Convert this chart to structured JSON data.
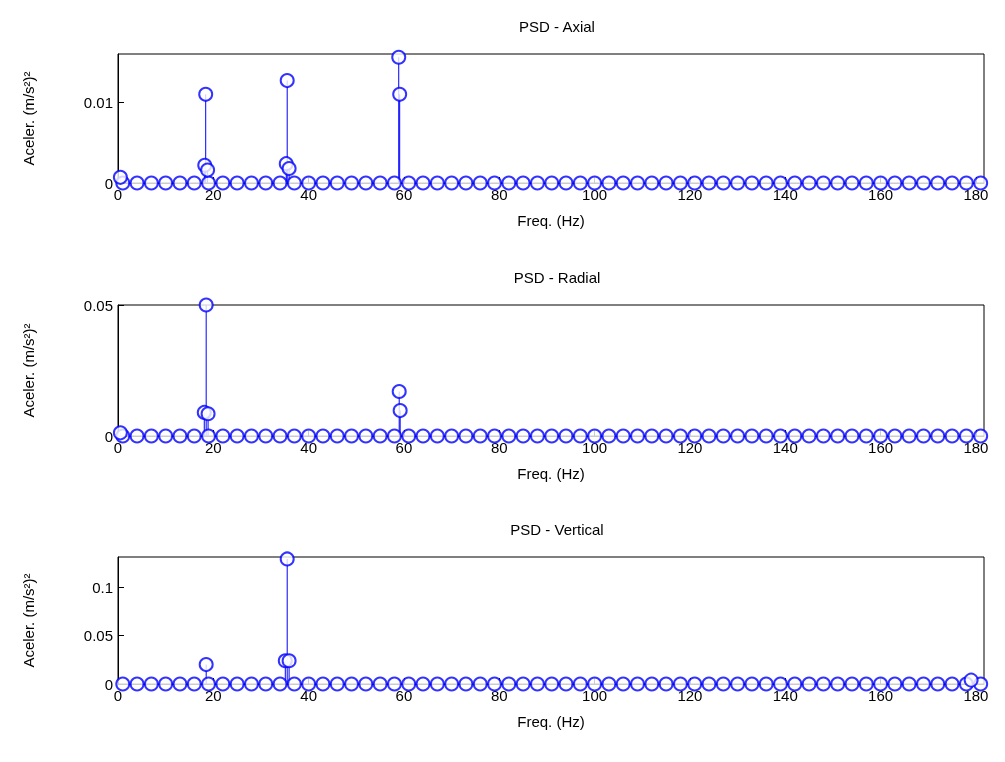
{
  "chart_data": [
    {
      "type": "lollipop",
      "title": "PSD - Axial",
      "xlabel": "Freq. (Hz)",
      "ylabel": "Aceler. (m/s²)²",
      "xlim": [
        0,
        181.7
      ],
      "xticks": [
        0,
        20,
        40,
        60,
        80,
        100,
        120,
        140,
        160,
        180
      ],
      "ylim": [
        0,
        0.016
      ],
      "yticks": [
        0,
        0.01
      ],
      "grid": false,
      "marker": "circle",
      "series": [
        {
          "color": "#0000ff",
          "x": [
            1,
            4,
            7,
            10,
            13,
            16,
            19,
            22,
            25,
            28,
            31,
            34,
            37,
            40,
            43,
            46,
            49,
            52,
            55,
            58,
            61,
            64,
            67,
            70,
            73,
            76,
            79,
            82,
            85,
            88,
            91,
            94,
            97,
            100,
            103,
            106,
            109,
            112,
            115,
            118,
            121,
            124,
            127,
            130,
            133,
            136,
            139,
            142,
            145,
            148,
            151,
            154,
            157,
            160,
            163,
            166,
            169,
            172,
            175,
            178,
            181,
            0.5,
            18.2,
            18.4,
            18.8,
            35.3,
            35.5,
            35.9,
            58.9,
            59.1
          ],
          "values": [
            0,
            0,
            0,
            0,
            0,
            0,
            0,
            0,
            0,
            0,
            0,
            0,
            0,
            0,
            0,
            0,
            0,
            0,
            0,
            0,
            0,
            0,
            0,
            0,
            0,
            0,
            0,
            0,
            0,
            0,
            0,
            0,
            0,
            0,
            0,
            0,
            0,
            0,
            0,
            0,
            0,
            0,
            0,
            0,
            0,
            0,
            0,
            0,
            0,
            0,
            0,
            0,
            0,
            0,
            0,
            0,
            0,
            0,
            0,
            0,
            0,
            0.0007,
            0.0022,
            0.011,
            0.0016,
            0.0024,
            0.0127,
            0.0018,
            0.0156,
            0.011
          ]
        }
      ]
    },
    {
      "type": "lollipop",
      "title": "PSD - Radial",
      "xlabel": "Freq. (Hz)",
      "ylabel": "Aceler. (m/s²)²",
      "xlim": [
        0,
        181.7
      ],
      "xticks": [
        0,
        20,
        40,
        60,
        80,
        100,
        120,
        140,
        160,
        180
      ],
      "ylim": [
        0,
        0.05
      ],
      "yticks": [
        0,
        0.05
      ],
      "grid": false,
      "marker": "circle",
      "series": [
        {
          "color": "#0000ff",
          "x": [
            1,
            4,
            7,
            10,
            13,
            16,
            19,
            22,
            25,
            28,
            31,
            34,
            37,
            40,
            43,
            46,
            49,
            52,
            55,
            58,
            61,
            64,
            67,
            70,
            73,
            76,
            79,
            82,
            85,
            88,
            91,
            94,
            97,
            100,
            103,
            106,
            109,
            112,
            115,
            118,
            121,
            124,
            127,
            130,
            133,
            136,
            139,
            142,
            145,
            148,
            151,
            154,
            157,
            160,
            163,
            166,
            169,
            172,
            175,
            178,
            181,
            0.5,
            18.1,
            18.5,
            18.9,
            59,
            59.2
          ],
          "values": [
            0,
            0,
            0,
            0,
            0,
            0,
            0,
            0,
            0,
            0,
            0,
            0,
            0,
            0,
            0,
            0,
            0,
            0,
            0,
            0,
            0,
            0,
            0,
            0,
            0,
            0,
            0,
            0,
            0,
            0,
            0,
            0,
            0,
            0,
            0,
            0,
            0,
            0,
            0,
            0,
            0,
            0,
            0,
            0,
            0,
            0,
            0,
            0,
            0,
            0,
            0,
            0,
            0,
            0,
            0,
            0,
            0,
            0,
            0,
            0,
            0,
            0.0012,
            0.009,
            0.05,
            0.0085,
            0.017,
            0.0097
          ]
        }
      ]
    },
    {
      "type": "lollipop",
      "title": "PSD - Vertical",
      "xlabel": "Freq. (Hz)",
      "ylabel": "Aceler. (m/s²)²",
      "xlim": [
        0,
        181.7
      ],
      "xticks": [
        0,
        20,
        40,
        60,
        80,
        100,
        120,
        140,
        160,
        180
      ],
      "ylim": [
        0,
        0.131
      ],
      "yticks": [
        0,
        0.05,
        0.1
      ],
      "grid": false,
      "marker": "circle",
      "series": [
        {
          "color": "#0000ff",
          "x": [
            1,
            4,
            7,
            10,
            13,
            16,
            19,
            22,
            25,
            28,
            31,
            34,
            37,
            40,
            43,
            46,
            49,
            52,
            55,
            58,
            61,
            64,
            67,
            70,
            73,
            76,
            79,
            82,
            85,
            88,
            91,
            94,
            97,
            100,
            103,
            106,
            109,
            112,
            115,
            118,
            121,
            124,
            127,
            130,
            133,
            136,
            139,
            142,
            145,
            148,
            151,
            154,
            157,
            160,
            163,
            166,
            169,
            172,
            175,
            178,
            181,
            18.5,
            35.1,
            35.5,
            35.9,
            179
          ],
          "values": [
            0,
            0,
            0,
            0,
            0,
            0,
            0,
            0,
            0,
            0,
            0,
            0,
            0,
            0,
            0,
            0,
            0,
            0,
            0,
            0,
            0,
            0,
            0,
            0,
            0,
            0,
            0,
            0,
            0,
            0,
            0,
            0,
            0,
            0,
            0,
            0,
            0,
            0,
            0,
            0,
            0,
            0,
            0,
            0,
            0,
            0,
            0,
            0,
            0,
            0,
            0,
            0,
            0,
            0,
            0,
            0,
            0,
            0,
            0,
            0,
            0,
            0.02,
            0.024,
            0.129,
            0.024,
            0.004
          ]
        }
      ]
    }
  ]
}
